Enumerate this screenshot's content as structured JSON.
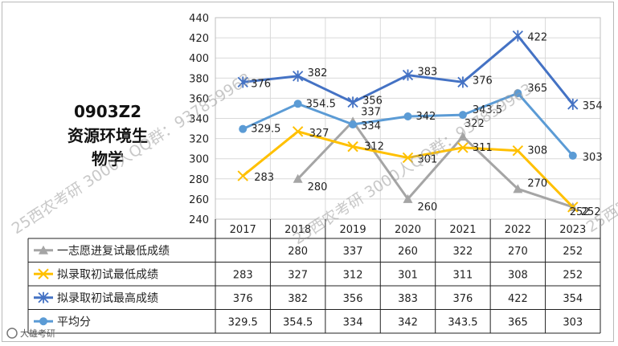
{
  "title_lines": [
    "0903Z2",
    "资源环境生",
    "物学"
  ],
  "watermarks": {
    "text_a": "25西农考研 3000人QQ群：937859963",
    "text_b": "25西农考研 3000人QQ群：937859963",
    "text_c": "25西农考研 3000人QQ群：937859963",
    "logo_text": "大雄考研"
  },
  "colors": {
    "gray": "#a5a5a5",
    "yellow": "#ffc000",
    "blue_dark": "#4472c4",
    "blue_light": "#5b9bd5",
    "grid": "#d9d9d9"
  },
  "chart_data": {
    "type": "line",
    "categories": [
      "2017",
      "2018",
      "2019",
      "2020",
      "2021",
      "2022",
      "2023"
    ],
    "ylim": [
      240,
      440
    ],
    "yticks": [
      "240",
      "260",
      "280",
      "300",
      "320",
      "340",
      "360",
      "380",
      "400",
      "420",
      "440"
    ],
    "grid": true,
    "legend": "data-table-left",
    "series": [
      {
        "name": "一志愿进复试最低成绩",
        "color": "#a5a5a5",
        "marker": "triangle",
        "values": [
          null,
          280,
          337,
          260,
          322,
          270,
          252
        ],
        "labels": [
          "",
          "280",
          "337",
          "260",
          "322",
          "270",
          "252"
        ]
      },
      {
        "name": "拟录取初试最低成绩",
        "color": "#ffc000",
        "marker": "x",
        "values": [
          283,
          327,
          312,
          301,
          311,
          308,
          252
        ],
        "labels": [
          "283",
          "327",
          "312",
          "301",
          "311",
          "308",
          "252"
        ]
      },
      {
        "name": "拟录取初试最高成绩",
        "color": "#4472c4",
        "marker": "star",
        "values": [
          376,
          382,
          356,
          383,
          376,
          422,
          354
        ],
        "labels": [
          "376",
          "382",
          "356",
          "383",
          "376",
          "422",
          "354"
        ]
      },
      {
        "name": "平均分",
        "color": "#5b9bd5",
        "marker": "diamond",
        "values": [
          329.5,
          354.5,
          334,
          342,
          343.5,
          365,
          303
        ],
        "labels": [
          "329.5",
          "354.5",
          "334",
          "342",
          "343.5",
          "365",
          "303"
        ]
      }
    ]
  }
}
